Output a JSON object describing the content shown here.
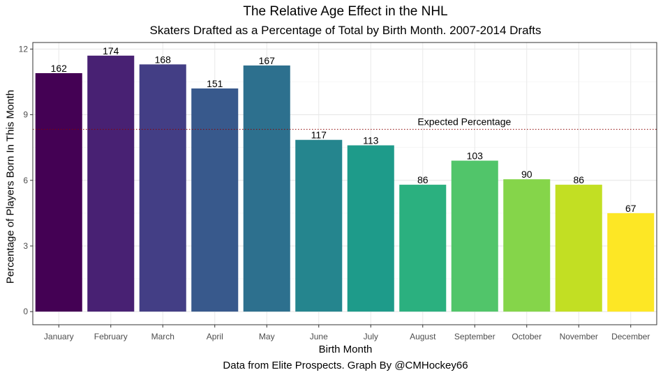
{
  "chart_data": {
    "type": "bar",
    "title": "The Relative Age Effect in the NHL",
    "subtitle": "Skaters Drafted as a Percentage of Total by Birth Month. 2007-2014 Drafts",
    "xlabel": "Birth Month",
    "ylabel": "Percentage of Players Born In This Month",
    "caption": "Data from Elite Prospects. Graph By @CMHockey66",
    "categories": [
      "January",
      "February",
      "March",
      "April",
      "May",
      "June",
      "July",
      "August",
      "September",
      "October",
      "November",
      "December"
    ],
    "values": [
      10.9,
      11.7,
      11.3,
      10.2,
      11.25,
      7.85,
      7.6,
      5.8,
      6.9,
      6.05,
      5.8,
      4.5
    ],
    "labels": [
      "162",
      "174",
      "168",
      "151",
      "167",
      "117",
      "113",
      "86",
      "103",
      "90",
      "86",
      "67"
    ],
    "colors": [
      "#440154",
      "#482173",
      "#433E85",
      "#38598C",
      "#2D708E",
      "#25858E",
      "#1E9B8A",
      "#2BB07F",
      "#51C56A",
      "#85D54A",
      "#C2DF23",
      "#FDE725"
    ],
    "ylim": [
      -0.6,
      12.3
    ],
    "yticks": [
      0,
      3,
      6,
      9,
      12
    ],
    "reference_line": {
      "value": 8.33,
      "label": "Expected Percentage",
      "color": "#8B0000"
    },
    "grid": true,
    "legend": "none"
  }
}
